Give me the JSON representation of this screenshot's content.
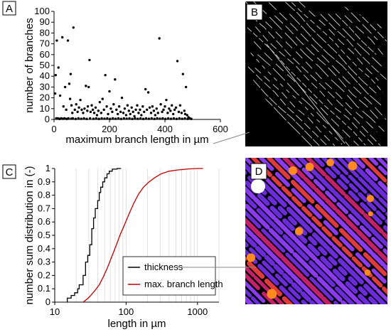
{
  "panels": {
    "a": "A",
    "b": "B",
    "c": "C",
    "d": "D"
  },
  "chart_data": [
    {
      "type": "scatter",
      "panel": "A",
      "xlabel": "maximum branch length in µm",
      "ylabel": "number of branches",
      "xlim": [
        0,
        600
      ],
      "ylim": [
        0,
        100
      ],
      "xticks": [
        0,
        200,
        400,
        600
      ],
      "yticks": [
        0,
        10,
        20,
        30,
        40,
        50,
        60,
        70,
        80,
        90,
        100
      ],
      "grid": false,
      "series": [
        {
          "color": "#000000",
          "points": [
            [
              4,
              24
            ],
            [
              6,
              41
            ],
            [
              10,
              73
            ],
            [
              16,
              48
            ],
            [
              22,
              22
            ],
            [
              30,
              76
            ],
            [
              34,
              12
            ],
            [
              40,
              30
            ],
            [
              44,
              9
            ],
            [
              50,
              73
            ],
            [
              55,
              33
            ],
            [
              58,
              19
            ],
            [
              60,
              42
            ],
            [
              63,
              13
            ],
            [
              66,
              6
            ],
            [
              70,
              85
            ],
            [
              75,
              9
            ],
            [
              80,
              14
            ],
            [
              85,
              7
            ],
            [
              90,
              11
            ],
            [
              95,
              18
            ],
            [
              100,
              9
            ],
            [
              105,
              6
            ],
            [
              110,
              10
            ],
            [
              115,
              31
            ],
            [
              120,
              8
            ],
            [
              122,
              12
            ],
            [
              125,
              30
            ],
            [
              128,
              55
            ],
            [
              132,
              7
            ],
            [
              136,
              13
            ],
            [
              140,
              9
            ],
            [
              145,
              6
            ],
            [
              150,
              11
            ],
            [
              155,
              4
            ],
            [
              160,
              8
            ],
            [
              165,
              16
            ],
            [
              170,
              6
            ],
            [
              175,
              19
            ],
            [
              180,
              9
            ],
            [
              185,
              41
            ],
            [
              190,
              12
            ],
            [
              195,
              5
            ],
            [
              200,
              26
            ],
            [
              205,
              10
            ],
            [
              210,
              7
            ],
            [
              215,
              14
            ],
            [
              220,
              37
            ],
            [
              225,
              9
            ],
            [
              230,
              5
            ],
            [
              235,
              12
            ],
            [
              240,
              7
            ],
            [
              245,
              20
            ],
            [
              250,
              6
            ],
            [
              255,
              10
            ],
            [
              260,
              4
            ],
            [
              265,
              13
            ],
            [
              270,
              8
            ],
            [
              275,
              5
            ],
            [
              280,
              11
            ],
            [
              285,
              7
            ],
            [
              290,
              3
            ],
            [
              295,
              9
            ],
            [
              300,
              13
            ],
            [
              305,
              6
            ],
            [
              310,
              9
            ],
            [
              315,
              4
            ],
            [
              320,
              12
            ],
            [
              325,
              7
            ],
            [
              330,
              28
            ],
            [
              335,
              9
            ],
            [
              340,
              25
            ],
            [
              345,
              11
            ],
            [
              350,
              6
            ],
            [
              355,
              12
            ],
            [
              360,
              8
            ],
            [
              365,
              4
            ],
            [
              370,
              10
            ],
            [
              375,
              6
            ],
            [
              380,
              75
            ],
            [
              385,
              14
            ],
            [
              390,
              7
            ],
            [
              395,
              9
            ],
            [
              400,
              12
            ],
            [
              405,
              18
            ],
            [
              410,
              6
            ],
            [
              415,
              10
            ],
            [
              420,
              8
            ],
            [
              425,
              13
            ],
            [
              430,
              5
            ],
            [
              435,
              9
            ],
            [
              440,
              11
            ],
            [
              445,
              54
            ],
            [
              450,
              7
            ],
            [
              455,
              13
            ],
            [
              460,
              6
            ],
            [
              465,
              42
            ],
            [
              470,
              8
            ],
            [
              473,
              5
            ],
            [
              476,
              30
            ],
            [
              480,
              4
            ],
            [
              485,
              2
            ]
          ],
          "baseline_points": [
            [
              8,
              1
            ],
            [
              14,
              1
            ],
            [
              20,
              0.5
            ],
            [
              26,
              1
            ],
            [
              32,
              0.6
            ],
            [
              38,
              1
            ],
            [
              46,
              0.5
            ],
            [
              52,
              1
            ],
            [
              62,
              0.7
            ],
            [
              68,
              1
            ],
            [
              78,
              0.5
            ],
            [
              88,
              1
            ],
            [
              98,
              0.6
            ],
            [
              108,
              1
            ],
            [
              118,
              0.5
            ],
            [
              130,
              1
            ],
            [
              142,
              0.6
            ],
            [
              152,
              1
            ],
            [
              162,
              0.5
            ],
            [
              172,
              1
            ],
            [
              182,
              0.7
            ],
            [
              192,
              1
            ],
            [
              202,
              0.5
            ],
            [
              212,
              1
            ],
            [
              222,
              0.6
            ],
            [
              232,
              1
            ],
            [
              242,
              0.5
            ],
            [
              252,
              1
            ],
            [
              262,
              0.7
            ],
            [
              272,
              1
            ],
            [
              282,
              0.5
            ],
            [
              292,
              1
            ],
            [
              302,
              0.6
            ],
            [
              312,
              1
            ],
            [
              322,
              0.5
            ],
            [
              332,
              1
            ],
            [
              342,
              0.6
            ],
            [
              352,
              1
            ],
            [
              362,
              0.5
            ],
            [
              372,
              1
            ],
            [
              382,
              0.7
            ],
            [
              392,
              1
            ],
            [
              402,
              0.5
            ],
            [
              412,
              1
            ],
            [
              422,
              0.6
            ],
            [
              432,
              1
            ],
            [
              442,
              0.5
            ],
            [
              452,
              1
            ],
            [
              462,
              0.6
            ],
            [
              472,
              1
            ],
            [
              482,
              0.5
            ],
            [
              490,
              1
            ],
            [
              495,
              0.5
            ]
          ]
        }
      ]
    },
    {
      "type": "line",
      "panel": "C",
      "xlabel": "length in µm",
      "ylabel": "number sum distribution in (-)",
      "xscale": "log",
      "xlim": [
        10,
        2000
      ],
      "ylim": [
        0,
        1
      ],
      "xticks": [
        10,
        100,
        1000
      ],
      "yticks": [
        0,
        0.1,
        0.2,
        0.3,
        0.4,
        0.5,
        0.6,
        0.7,
        0.8,
        0.9,
        1
      ],
      "grid": "vertical-minor",
      "legend_position": "bottom-right",
      "series": [
        {
          "name": "thickness",
          "color": "#000000",
          "step": true,
          "points": [
            [
              15,
              0
            ],
            [
              15,
              0.03
            ],
            [
              17,
              0.03
            ],
            [
              17,
              0.05
            ],
            [
              19,
              0.05
            ],
            [
              19,
              0.07
            ],
            [
              21,
              0.07
            ],
            [
              21,
              0.1
            ],
            [
              22,
              0.1
            ],
            [
              22,
              0.13
            ],
            [
              25,
              0.13
            ],
            [
              25,
              0.2
            ],
            [
              27,
              0.2
            ],
            [
              27,
              0.3
            ],
            [
              29,
              0.3
            ],
            [
              29,
              0.35
            ],
            [
              31,
              0.35
            ],
            [
              31,
              0.43
            ],
            [
              33,
              0.43
            ],
            [
              33,
              0.55
            ],
            [
              35,
              0.55
            ],
            [
              35,
              0.63
            ],
            [
              37,
              0.63
            ],
            [
              37,
              0.7
            ],
            [
              40,
              0.7
            ],
            [
              40,
              0.76
            ],
            [
              42,
              0.76
            ],
            [
              42,
              0.82
            ],
            [
              44,
              0.82
            ],
            [
              44,
              0.86
            ],
            [
              47,
              0.86
            ],
            [
              47,
              0.9
            ],
            [
              50,
              0.9
            ],
            [
              50,
              0.93
            ],
            [
              54,
              0.93
            ],
            [
              54,
              0.96
            ],
            [
              58,
              0.96
            ],
            [
              58,
              0.98
            ],
            [
              64,
              0.98
            ],
            [
              64,
              0.995
            ],
            [
              75,
              0.995
            ],
            [
              75,
              1
            ],
            [
              85,
              1
            ]
          ]
        },
        {
          "name": "max. branch length",
          "color": "#c00000",
          "step": false,
          "points": [
            [
              25,
              0
            ],
            [
              28,
              0.02
            ],
            [
              32,
              0.05
            ],
            [
              37,
              0.09
            ],
            [
              42,
              0.13
            ],
            [
              48,
              0.19
            ],
            [
              55,
              0.26
            ],
            [
              63,
              0.34
            ],
            [
              72,
              0.42
            ],
            [
              82,
              0.5
            ],
            [
              95,
              0.58
            ],
            [
              110,
              0.66
            ],
            [
              128,
              0.74
            ],
            [
              150,
              0.81
            ],
            [
              175,
              0.86
            ],
            [
              210,
              0.9
            ],
            [
              250,
              0.93
            ],
            [
              310,
              0.96
            ],
            [
              400,
              0.98
            ],
            [
              550,
              0.99
            ],
            [
              750,
              0.997
            ],
            [
              1000,
              1
            ],
            [
              1200,
              1
            ]
          ]
        }
      ]
    }
  ],
  "images": {
    "b": {
      "background": "#000000",
      "line_color": "#d8d8d8"
    },
    "d": {
      "background": "#000000",
      "colors": [
        "#6a2bd9",
        "#8a3bf0",
        "#c4206a",
        "#e03a3a",
        "#ff8a1e",
        "#ffffff"
      ]
    }
  }
}
